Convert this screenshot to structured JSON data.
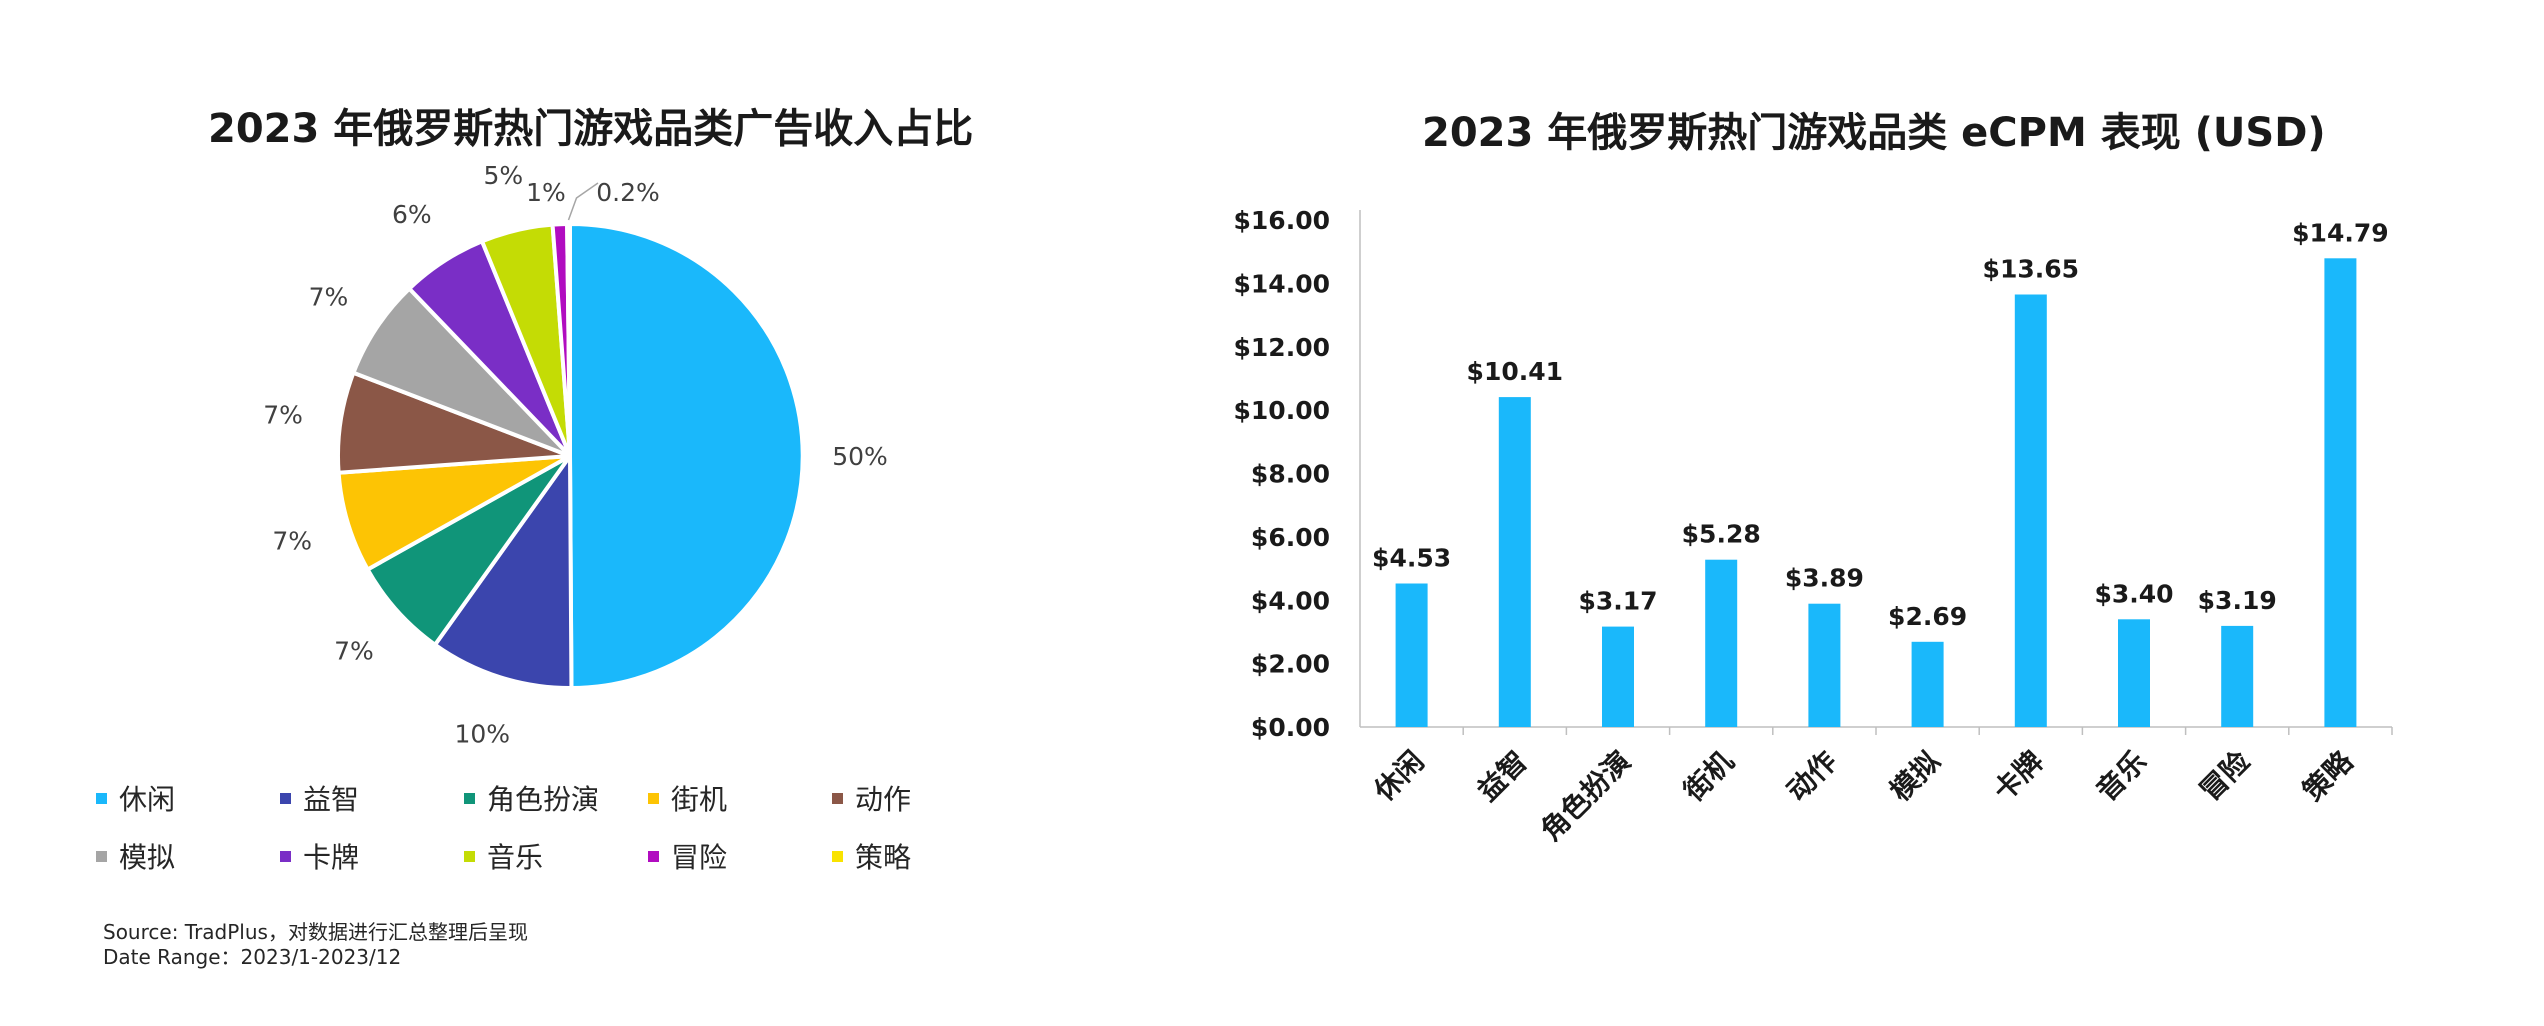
{
  "chart_data": [
    {
      "type": "pie",
      "title": "2023 年俄罗斯热门游戏品类广告收入占比",
      "categories": [
        "休闲",
        "益智",
        "角色扮演",
        "街机",
        "动作",
        "模拟",
        "卡牌",
        "音乐",
        "冒险",
        "策略"
      ],
      "values": [
        50,
        10,
        7,
        7,
        7,
        7,
        6,
        5,
        1,
        0.2
      ],
      "value_labels": [
        "50%",
        "10%",
        "7%",
        "7%",
        "7%",
        "7%",
        "6%",
        "5%",
        "1%",
        "0.2%"
      ],
      "colors": [
        "#1ab8fb",
        "#3b45ad",
        "#109579",
        "#fdc404",
        "#8b5747",
        "#a5a5a5",
        "#7a2ec6",
        "#c4dc05",
        "#b10cc0",
        "#f9e300"
      ],
      "legend": "bottom",
      "start_angle": 0,
      "direction": "clockwise"
    },
    {
      "type": "bar",
      "title": "2023 年俄罗斯热门游戏品类 eCPM 表现 (USD)",
      "categories": [
        "休闲",
        "益智",
        "角色扮演",
        "街机",
        "动作",
        "模拟",
        "卡牌",
        "音乐",
        "冒险",
        "策略"
      ],
      "values": [
        4.53,
        10.41,
        3.17,
        5.28,
        3.89,
        2.69,
        13.65,
        3.4,
        3.19,
        14.79
      ],
      "value_labels": [
        "$4.53",
        "$10.41",
        "$3.17",
        "$5.28",
        "$3.89",
        "$2.69",
        "$13.65",
        "$3.40",
        "$3.19",
        "$14.79"
      ],
      "ylim": [
        0,
        16
      ],
      "yticks": [
        "$0.00",
        "$2.00",
        "$4.00",
        "$6.00",
        "$8.00",
        "$10.00",
        "$12.00",
        "$14.00",
        "$16.00"
      ],
      "xlabel": "",
      "ylabel": "",
      "color": "#1ab8fb",
      "grid": false,
      "legend": "none"
    }
  ],
  "source": {
    "line1": "Source: TradPlus，对数据进行汇总整理后呈现",
    "line2": "Date Range：2023/1-2023/12"
  }
}
